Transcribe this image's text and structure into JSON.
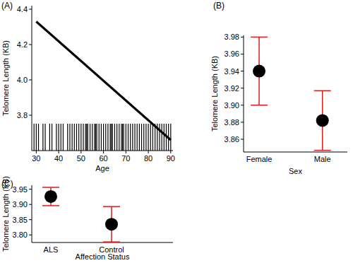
{
  "chart_data": [
    {
      "type": "line",
      "title": "(A)",
      "x_label": "Age",
      "y_label": "Telomere Length (KB)",
      "x": [
        30,
        90
      ],
      "values": [
        4.33,
        3.66
      ],
      "color": "#000000",
      "xlim": [
        28,
        91
      ],
      "xticks": [
        30,
        40,
        50,
        60,
        70,
        80,
        90
      ],
      "ylim": [
        3.6,
        4.42
      ],
      "yticks": [
        3.8,
        {
          "value": 4,
          "label": "4.0"
        },
        4.2,
        4.4
      ],
      "rug": [
        29,
        30,
        31,
        33,
        34,
        36,
        37,
        39,
        40,
        41,
        42,
        44,
        45,
        46,
        47,
        48,
        49,
        50,
        51,
        52,
        52.5,
        53,
        54,
        55,
        56,
        56.5,
        57,
        58,
        59,
        60,
        61,
        62,
        63,
        63.5,
        64,
        65,
        66,
        67,
        68,
        68.5,
        69,
        70,
        71,
        72,
        73,
        74,
        75,
        76,
        77,
        78,
        79,
        80,
        81,
        82,
        83,
        84,
        85,
        86,
        87,
        88,
        89,
        90
      ]
    },
    {
      "type": "scatter",
      "title": "(B)",
      "x_label": "Sex",
      "y_label": "Telomere Length (KB)",
      "categories": [
        "Female",
        "Male"
      ],
      "values": [
        3.94,
        3.882
      ],
      "errors": [
        0.04,
        0.035
      ],
      "color": "#000000",
      "ylim": [
        3.845,
        3.982
      ],
      "yticks": [
        3.86,
        3.88,
        {
          "value": 3.9,
          "label": "3.90"
        },
        3.92,
        3.94,
        3.96,
        3.98
      ]
    },
    {
      "type": "scatter",
      "title": "(C)",
      "x_label": "Affection Status",
      "y_label": "Telomere Length (KB)",
      "categories": [
        "ALS",
        "Control"
      ],
      "values": [
        3.926,
        3.835
      ],
      "errors": [
        0.03,
        0.058
      ],
      "color": "#000000",
      "ylim": [
        3.775,
        3.963
      ],
      "yticks": [
        {
          "value": 3.8,
          "label": "3.80"
        },
        3.85,
        {
          "value": 3.9,
          "label": "3.90"
        },
        3.95
      ]
    }
  ]
}
